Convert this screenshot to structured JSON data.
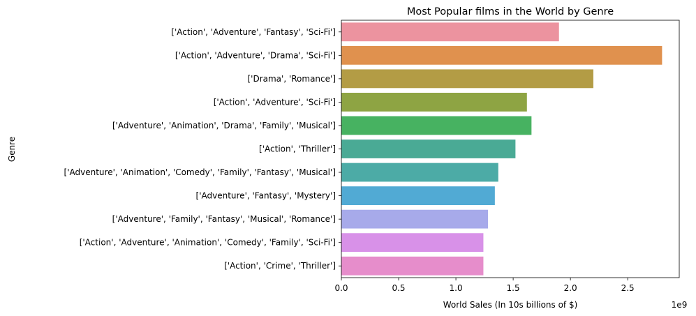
{
  "chart_data": {
    "type": "bar",
    "orientation": "horizontal",
    "title": "Most Popular films in the World by Genre",
    "xlabel": "World Sales (In 10s billions of $)",
    "ylabel": "Genre",
    "x_offset_text": "1e9",
    "xlim": [
      0,
      2950000000.0
    ],
    "xticks": [
      0,
      500000000.0,
      1000000000.0,
      1500000000.0,
      2000000000.0,
      2500000000.0
    ],
    "xtick_labels": [
      "0.0",
      "0.5",
      "1.0",
      "1.5",
      "2.0",
      "2.5"
    ],
    "grid": false,
    "categories": [
      "['Action', 'Adventure', 'Fantasy', 'Sci-Fi']",
      "['Action', 'Adventure', 'Drama', 'Sci-Fi']",
      "['Drama', 'Romance']",
      "['Action', 'Adventure', 'Sci-Fi']",
      "['Adventure', 'Animation', 'Drama', 'Family', 'Musical']",
      "['Action', 'Thriller']",
      "['Adventure', 'Animation', 'Comedy', 'Family', 'Fantasy', 'Musical']",
      "['Adventure', 'Fantasy', 'Mystery']",
      "['Adventure', 'Family', 'Fantasy', 'Musical', 'Romance']",
      "['Action', 'Adventure', 'Animation', 'Comedy', 'Family', 'Sci-Fi']",
      "['Action', 'Crime', 'Thriller']"
    ],
    "values": [
      1900000000.0,
      2800000000.0,
      2200000000.0,
      1620000000.0,
      1660000000.0,
      1520000000.0,
      1370000000.0,
      1340000000.0,
      1280000000.0,
      1240000000.0,
      1240000000.0
    ],
    "colors": [
      "#ec939f",
      "#e0914e",
      "#b39c45",
      "#8ea443",
      "#47b261",
      "#4aaa95",
      "#4caba6",
      "#51aad4",
      "#a7aaea",
      "#d891e8",
      "#e68dcb"
    ]
  }
}
